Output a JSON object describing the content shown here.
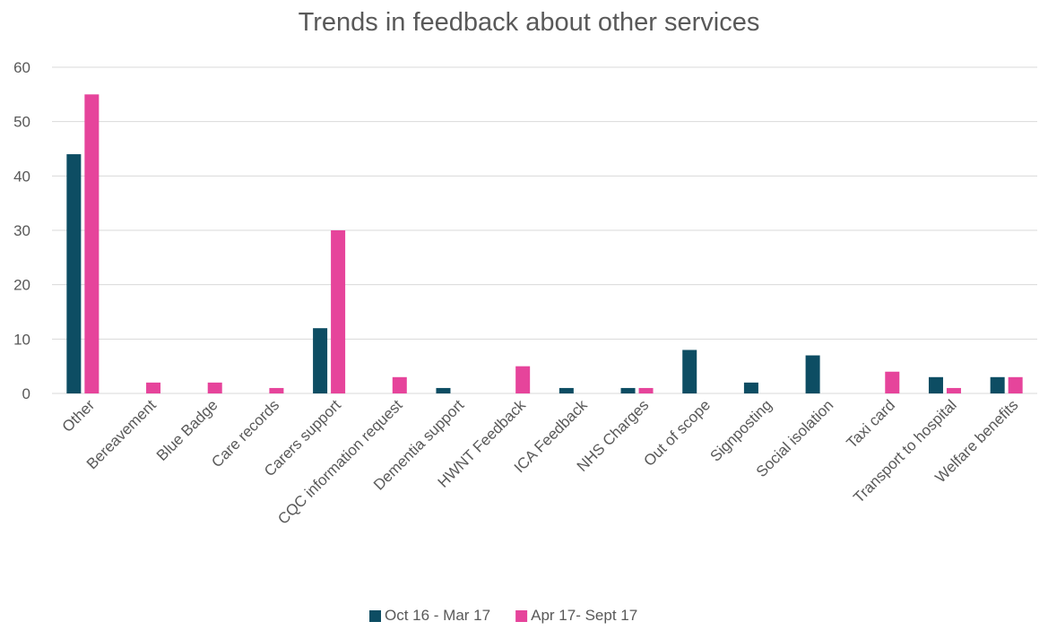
{
  "chart_data": {
    "type": "bar",
    "title": "Trends in feedback about other services",
    "xlabel": "",
    "ylabel": "",
    "ylim": [
      0,
      60
    ],
    "yticks": [
      0,
      10,
      20,
      30,
      40,
      50,
      60
    ],
    "grid": true,
    "legend_position": "bottom",
    "categories": [
      "Other",
      "Bereavement",
      "Blue Badge",
      "Care records",
      "Carers support",
      "CQC information request",
      "Dementia support",
      "HWNT Feedback",
      "ICA Feedback",
      "NHS Charges",
      "Out of scope",
      "Signposting",
      "Social isolation",
      "Taxi card",
      "Transport to hospital",
      "Welfare benefits"
    ],
    "series": [
      {
        "name": "Oct 16 - Mar 17",
        "color": "#0d4d63",
        "values": [
          44,
          0,
          0,
          0,
          12,
          0,
          1,
          0,
          1,
          1,
          8,
          2,
          7,
          0,
          3,
          3
        ]
      },
      {
        "name": "Apr 17- Sept 17",
        "color": "#e6449b",
        "values": [
          55,
          2,
          2,
          1,
          30,
          3,
          0,
          5,
          0,
          1,
          0,
          0,
          0,
          4,
          1,
          3
        ]
      }
    ]
  }
}
